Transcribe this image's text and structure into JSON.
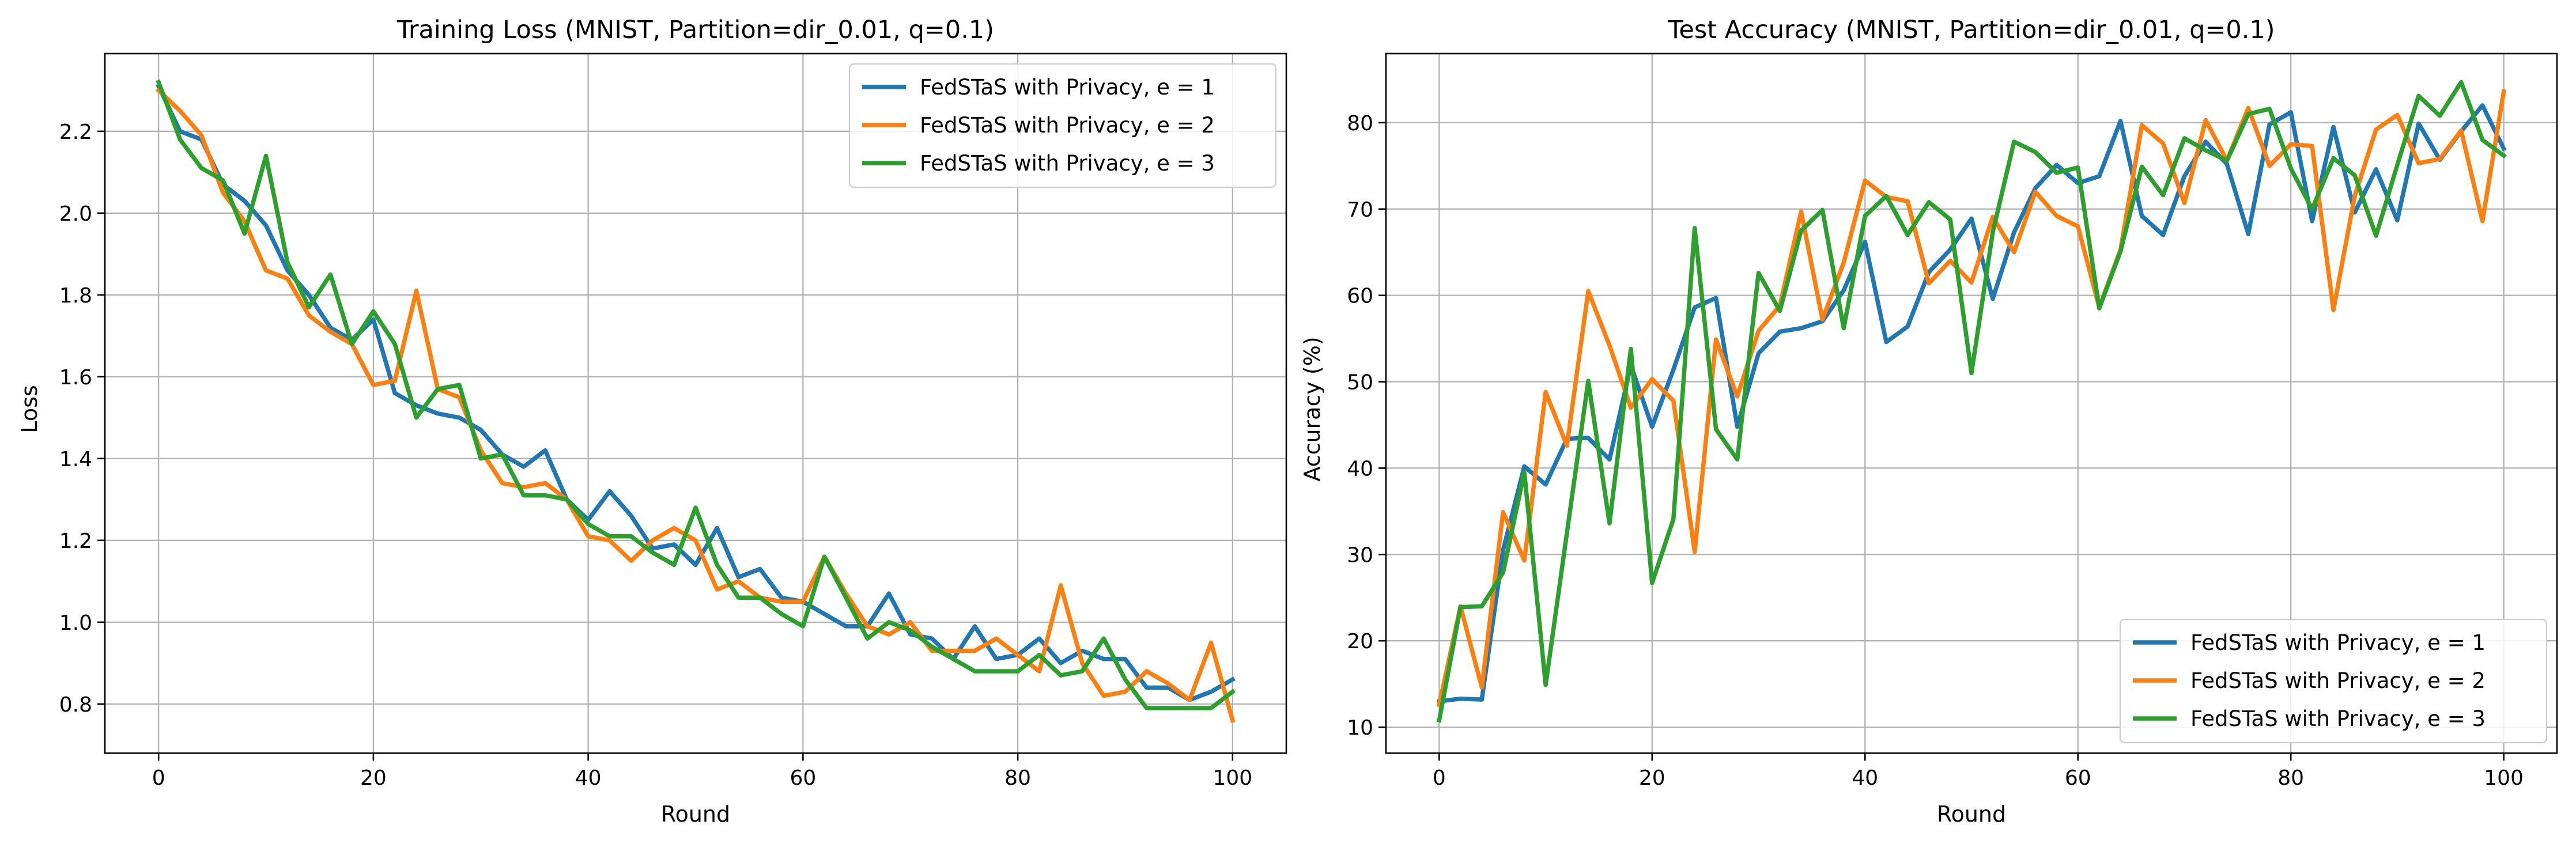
{
  "chart_data": [
    {
      "type": "line",
      "title": "Training Loss (MNIST, Partition=dir_0.01, q=0.1)",
      "xlabel": "Round",
      "ylabel": "Loss",
      "xlim": [
        -5,
        105
      ],
      "ylim": [
        0.68,
        2.39
      ],
      "xticks": [
        0,
        20,
        40,
        60,
        80,
        100
      ],
      "yticks": [
        0.8,
        1.0,
        1.2,
        1.4,
        1.6,
        1.8,
        2.0,
        2.2
      ],
      "ytick_labels": [
        "0.8",
        "1.0",
        "1.2",
        "1.4",
        "1.6",
        "1.8",
        "2.0",
        "2.2"
      ],
      "grid": true,
      "legend_position": "upper right",
      "x": [
        0,
        2,
        4,
        6,
        8,
        10,
        12,
        14,
        16,
        18,
        20,
        22,
        24,
        26,
        28,
        30,
        32,
        34,
        36,
        38,
        40,
        42,
        44,
        46,
        48,
        50,
        52,
        54,
        56,
        58,
        60,
        62,
        64,
        66,
        68,
        70,
        72,
        74,
        76,
        78,
        80,
        82,
        84,
        86,
        88,
        90,
        92,
        94,
        96,
        98,
        100
      ],
      "series": [
        {
          "name": "FedSTaS with Privacy, e = 1",
          "color": "#1f77b4",
          "values": [
            2.31,
            2.2,
            2.18,
            2.07,
            2.03,
            1.97,
            1.86,
            1.8,
            1.72,
            1.69,
            1.74,
            1.56,
            1.53,
            1.51,
            1.5,
            1.47,
            1.41,
            1.38,
            1.42,
            1.3,
            1.25,
            1.32,
            1.26,
            1.18,
            1.19,
            1.14,
            1.23,
            1.11,
            1.13,
            1.06,
            1.05,
            1.02,
            0.99,
            0.99,
            1.07,
            0.97,
            0.96,
            0.91,
            0.99,
            0.91,
            0.92,
            0.96,
            0.9,
            0.93,
            0.91,
            0.91,
            0.84,
            0.84,
            0.81,
            0.83,
            0.86
          ]
        },
        {
          "name": "FedSTaS with Privacy, e = 2",
          "color": "#ff7f0e",
          "values": [
            2.3,
            2.25,
            2.19,
            2.05,
            1.98,
            1.86,
            1.84,
            1.75,
            1.71,
            1.68,
            1.58,
            1.59,
            1.81,
            1.57,
            1.55,
            1.42,
            1.34,
            1.33,
            1.34,
            1.3,
            1.21,
            1.2,
            1.15,
            1.2,
            1.23,
            1.2,
            1.08,
            1.1,
            1.06,
            1.05,
            1.05,
            1.16,
            1.07,
            0.99,
            0.97,
            1.0,
            0.93,
            0.93,
            0.93,
            0.96,
            0.92,
            0.88,
            1.09,
            0.9,
            0.82,
            0.83,
            0.88,
            0.85,
            0.81,
            0.95,
            0.76
          ]
        },
        {
          "name": "FedSTaS with Privacy, e = 3",
          "color": "#2ca02c",
          "values": [
            2.32,
            2.18,
            2.11,
            2.08,
            1.95,
            2.14,
            1.88,
            1.77,
            1.85,
            1.68,
            1.76,
            1.68,
            1.5,
            1.57,
            1.58,
            1.4,
            1.41,
            1.31,
            1.31,
            1.3,
            1.24,
            1.21,
            1.21,
            1.17,
            1.14,
            1.28,
            1.14,
            1.06,
            1.06,
            1.02,
            0.99,
            1.16,
            1.06,
            0.96,
            1.0,
            0.98,
            0.94,
            0.91,
            0.88,
            0.88,
            0.88,
            0.92,
            0.87,
            0.88,
            0.96,
            0.86,
            0.79,
            0.79,
            0.79,
            0.79,
            0.83
          ]
        }
      ]
    },
    {
      "type": "line",
      "title": "Test Accuracy (MNIST, Partition=dir_0.01, q=0.1)",
      "xlabel": "Round",
      "ylabel": "Accuracy (%)",
      "xlim": [
        -5,
        105
      ],
      "ylim": [
        7,
        88
      ],
      "xticks": [
        0,
        20,
        40,
        60,
        80,
        100
      ],
      "yticks": [
        10,
        20,
        30,
        40,
        50,
        60,
        70,
        80
      ],
      "ytick_labels": [
        "10",
        "20",
        "30",
        "40",
        "50",
        "60",
        "70",
        "80"
      ],
      "grid": true,
      "legend_position": "lower right",
      "x": [
        0,
        2,
        4,
        6,
        8,
        10,
        12,
        14,
        16,
        18,
        20,
        22,
        24,
        26,
        28,
        30,
        32,
        34,
        36,
        38,
        40,
        42,
        44,
        46,
        48,
        50,
        52,
        54,
        56,
        58,
        60,
        62,
        64,
        66,
        68,
        70,
        72,
        74,
        76,
        78,
        80,
        82,
        84,
        86,
        88,
        90,
        92,
        94,
        96,
        98,
        100
      ],
      "series": [
        {
          "name": "FedSTaS with Privacy, e = 1",
          "color": "#1f77b4",
          "values": [
            13.0,
            13.3,
            13.2,
            30.5,
            40.2,
            38.1,
            43.4,
            43.5,
            41.0,
            51.9,
            44.8,
            51.4,
            58.6,
            59.7,
            44.8,
            53.3,
            55.8,
            56.2,
            57.0,
            60.6,
            66.2,
            54.6,
            56.4,
            62.7,
            65.3,
            68.9,
            59.6,
            67.3,
            72.4,
            75.1,
            73.0,
            73.8,
            80.2,
            69.2,
            67.0,
            73.8,
            77.8,
            75.2,
            67.1,
            79.8,
            81.2,
            68.6,
            79.5,
            69.6,
            74.6,
            68.7,
            79.9,
            75.7,
            79.0,
            82.0,
            77.0
          ]
        },
        {
          "name": "FedSTaS with Privacy, e = 2",
          "color": "#ff7f0e",
          "values": [
            12.6,
            24.0,
            14.6,
            34.9,
            29.3,
            48.8,
            42.6,
            60.5,
            54.2,
            47.0,
            50.3,
            47.8,
            30.3,
            54.9,
            48.3,
            55.9,
            58.8,
            69.7,
            57.2,
            63.8,
            73.3,
            71.4,
            70.9,
            61.4,
            64.0,
            61.5,
            69.1,
            65.0,
            72.0,
            69.2,
            68.0,
            58.6,
            65.3,
            79.7,
            77.6,
            70.7,
            80.3,
            75.6,
            81.7,
            75.0,
            77.5,
            77.3,
            58.3,
            71.5,
            79.2,
            80.9,
            75.3,
            75.8,
            79.1,
            68.6,
            83.6
          ]
        },
        {
          "name": "FedSTaS with Privacy, e = 3",
          "color": "#2ca02c",
          "values": [
            10.8,
            23.9,
            24.0,
            27.9,
            39.5,
            14.9,
            32.5,
            50.1,
            33.6,
            53.8,
            26.7,
            34.1,
            67.8,
            44.5,
            41.0,
            62.6,
            58.2,
            67.5,
            69.9,
            56.2,
            69.2,
            71.5,
            67.0,
            70.8,
            68.8,
            51.0,
            67.3,
            77.8,
            76.6,
            74.2,
            74.8,
            58.5,
            65.1,
            74.9,
            71.6,
            78.2,
            76.8,
            75.6,
            81.0,
            81.6,
            74.7,
            70.0,
            75.9,
            73.9,
            66.9,
            75.1,
            83.1,
            80.8,
            84.7,
            78.0,
            76.2
          ]
        }
      ]
    }
  ]
}
